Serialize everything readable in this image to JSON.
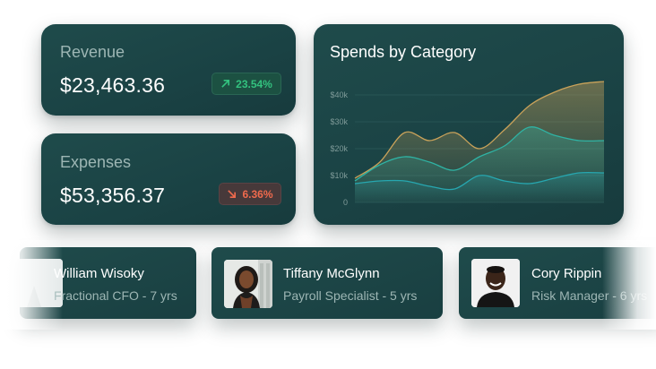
{
  "revenue": {
    "label": "Revenue",
    "value": "$23,463.36",
    "change": "23.54%",
    "trend": "up"
  },
  "expenses": {
    "label": "Expenses",
    "value": "$53,356.37",
    "change": "6.36%",
    "trend": "down"
  },
  "colors": {
    "card": "#1c4446",
    "up": "#33c27f",
    "down": "#ef6a4d",
    "line_a": "#c9a25a",
    "line_b": "#2fb3a4",
    "line_c": "#27a7b0"
  },
  "chart_data": {
    "type": "area",
    "title": "Spends by Category",
    "xlabel": "",
    "ylabel": "",
    "ylim": [
      0,
      40000
    ],
    "yticks": [
      "$40k",
      "$30k",
      "$20k",
      "$10k",
      "0"
    ],
    "x": [
      0,
      1,
      2,
      3,
      4,
      5,
      6,
      7,
      8,
      9,
      10
    ],
    "series": [
      {
        "values": [
          9000,
          15000,
          26000,
          23000,
          26000,
          20000,
          27000,
          36000,
          41000,
          44000,
          45000
        ]
      },
      {
        "values": [
          8000,
          14000,
          17000,
          15000,
          12000,
          17000,
          21000,
          28000,
          25000,
          23000,
          23000
        ]
      },
      {
        "values": [
          7000,
          8000,
          8000,
          6000,
          5000,
          10000,
          8000,
          7000,
          9000,
          11000,
          11000
        ]
      }
    ]
  },
  "people": [
    {
      "name": "William Wisoky",
      "role": "Fractional CFO - 7 yrs"
    },
    {
      "name": "Tiffany McGlynn",
      "role": "Payroll Specialist - 5 yrs"
    },
    {
      "name": "Cory Rippin",
      "role": "Risk Manager - 6 yrs"
    }
  ]
}
